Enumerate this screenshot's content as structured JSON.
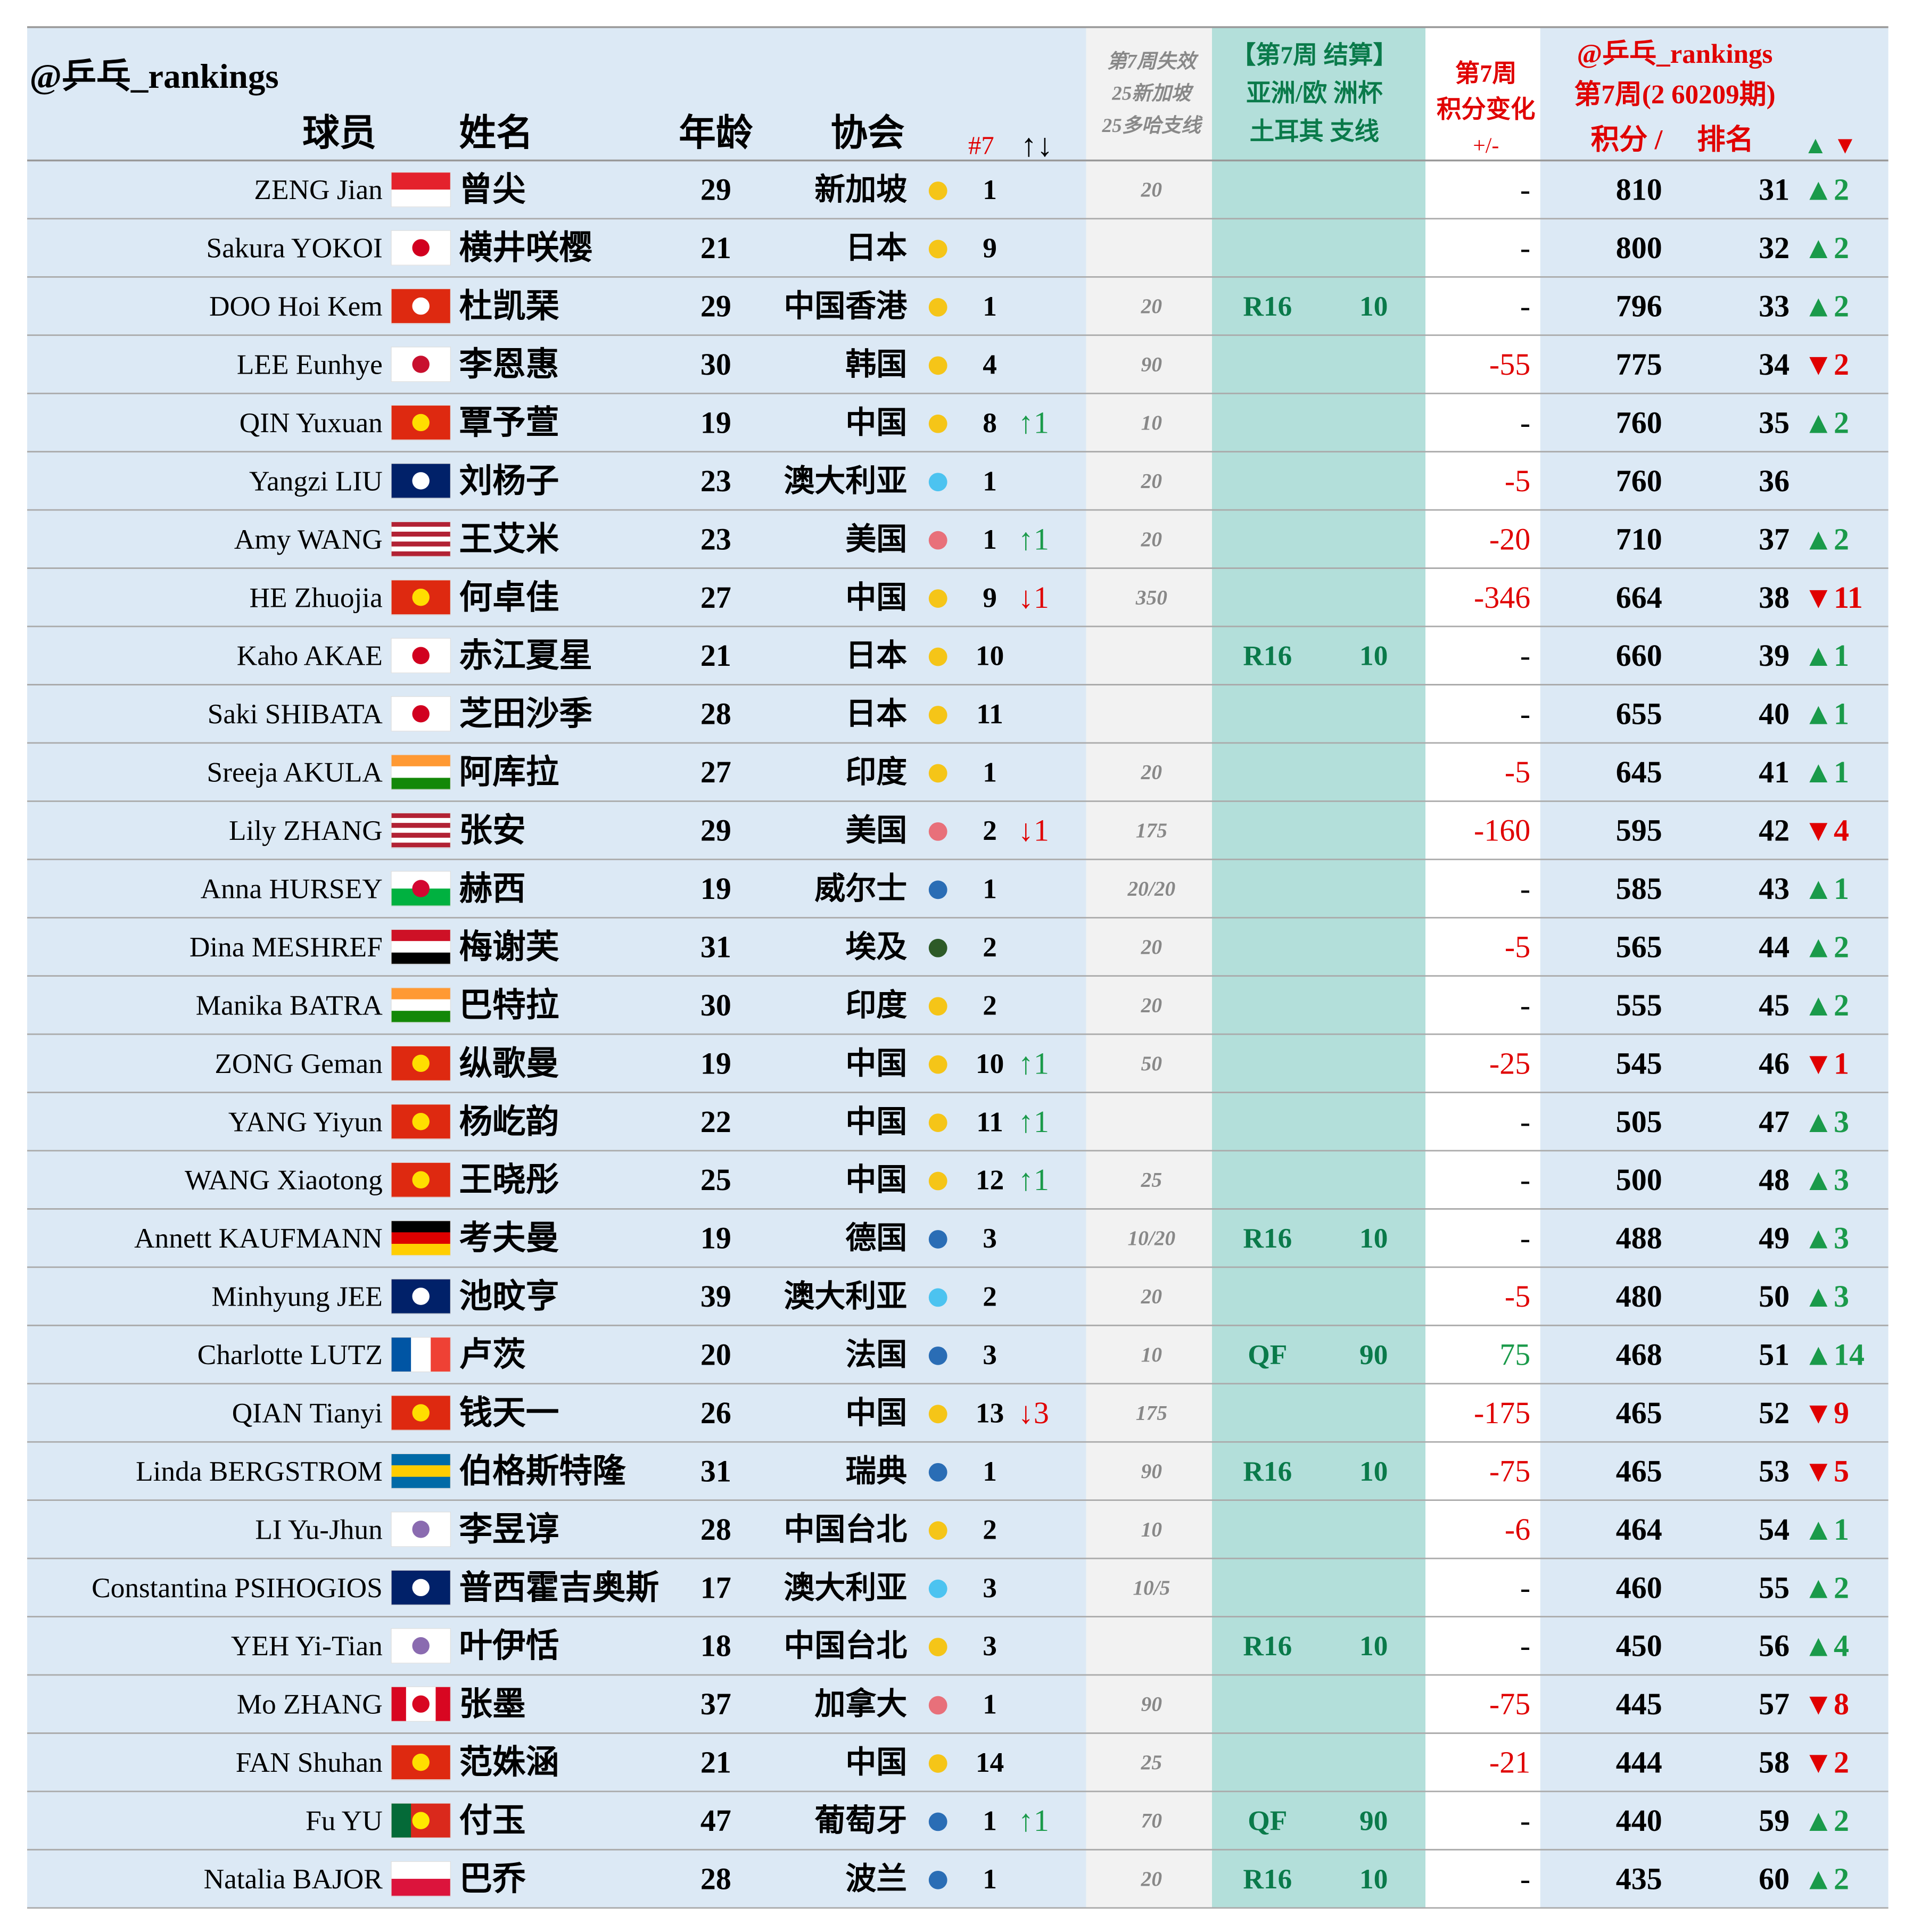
{
  "header": {
    "handle": "@乒乓_rankings",
    "player": "球员",
    "cn_name": "姓名",
    "age": "年龄",
    "assoc": "协会",
    "week": "#7",
    "moves": "↑↓",
    "lost_title": [
      "第7周失效",
      "25新加坡",
      "25多哈支线"
    ],
    "cup_title": [
      "【第7周 结算】",
      "亚洲/欧 洲杯",
      "土耳其 支线"
    ],
    "change_title": [
      "第7周",
      "积分变化",
      "+/-"
    ],
    "rank_title": [
      "@乒乓_rankings",
      "第7周(2 60209期)"
    ],
    "points_label": "积分 /",
    "rank_label": "排名",
    "delta_up": "▲",
    "delta_down": "▼"
  },
  "rows": [
    {
      "name": "ZENG Jian",
      "cn": "曾尖",
      "age": 29,
      "assoc": "新加坡",
      "dot": "#f5c518",
      "wk": 1,
      "lost": 20,
      "change": "-",
      "points": 810,
      "rank": 31,
      "delta": "▲2",
      "delta_color": "#1a9a4a",
      "flag": {
        "dir": "h",
        "stripes": [
          "#e4222c",
          "#ffffff"
        ]
      }
    },
    {
      "name": "Sakura YOKOI",
      "cn": "横井咲樱",
      "age": 21,
      "assoc": "日本",
      "dot": "#f5c518",
      "wk": 9,
      "change": "-",
      "points": 800,
      "rank": 32,
      "delta": "▲2",
      "delta_color": "#1a9a4a",
      "flag": {
        "dir": "h",
        "stripes": [
          "#ffffff"
        ],
        "circle": "#d1001f"
      }
    },
    {
      "name": "DOO Hoi Kem",
      "cn": "杜凯琹",
      "age": 29,
      "assoc": "中国香港",
      "dot": "#f5c518",
      "wk": 1,
      "lost": 20,
      "cup_round": "R16",
      "cup_pts": 10,
      "change": "-",
      "points": 796,
      "rank": 33,
      "delta": "▲2",
      "delta_color": "#1a9a4a",
      "flag": {
        "dir": "h",
        "stripes": [
          "#de2910"
        ],
        "circle": "#ffffff"
      }
    },
    {
      "name": "LEE Eunhye",
      "cn": "李恩惠",
      "age": 30,
      "assoc": "韩国",
      "dot": "#f5c518",
      "wk": 4,
      "lost": 90,
      "change": -55,
      "points": 775,
      "rank": 34,
      "delta": "▼2",
      "delta_color": "#e00000",
      "flag": {
        "dir": "h",
        "stripes": [
          "#ffffff"
        ],
        "circle": "#c8102e"
      }
    },
    {
      "name": "QIN Yuxuan",
      "cn": "覃予萱",
      "age": 19,
      "assoc": "中国",
      "dot": "#f5c518",
      "wk": 8,
      "wk_move": "↑1",
      "wk_move_color": "#1a9a4a",
      "lost": 10,
      "change": "-",
      "points": 760,
      "rank": 35,
      "delta": "▲2",
      "delta_color": "#1a9a4a",
      "flag": {
        "dir": "h",
        "stripes": [
          "#de2910"
        ],
        "circle": "#ffde00"
      }
    },
    {
      "name": "Yangzi LIU",
      "cn": "刘杨子",
      "age": 23,
      "assoc": "澳大利亚",
      "dot": "#4cc3f0",
      "wk": 1,
      "lost": 20,
      "change": -5,
      "points": 760,
      "rank": 36,
      "flag": {
        "dir": "h",
        "stripes": [
          "#012169"
        ],
        "circle": "#ffffff"
      }
    },
    {
      "name": "Amy WANG",
      "cn": "王艾米",
      "age": 23,
      "assoc": "美国",
      "dot": "#e8707a",
      "wk": 1,
      "wk_move": "↑1",
      "wk_move_color": "#1a9a4a",
      "lost": 20,
      "change": -20,
      "points": 710,
      "rank": 37,
      "delta": "▲2",
      "delta_color": "#1a9a4a",
      "flag": {
        "dir": "h",
        "stripes": [
          "#b22234",
          "#ffffff",
          "#b22234",
          "#ffffff",
          "#b22234",
          "#ffffff",
          "#b22234"
        ]
      }
    },
    {
      "name": "HE Zhuojia",
      "cn": "何卓佳",
      "age": 27,
      "assoc": "中国",
      "dot": "#f5c518",
      "wk": 9,
      "wk_move": "↓1",
      "wk_move_color": "#e00000",
      "lost": 350,
      "change": -346,
      "points": 664,
      "rank": 38,
      "delta": "▼11",
      "delta_color": "#e00000",
      "flag": {
        "dir": "h",
        "stripes": [
          "#de2910"
        ],
        "circle": "#ffde00"
      }
    },
    {
      "name": "Kaho AKAE",
      "cn": "赤江夏星",
      "age": 21,
      "assoc": "日本",
      "dot": "#f5c518",
      "wk": 10,
      "cup_round": "R16",
      "cup_pts": 10,
      "change": "-",
      "points": 660,
      "rank": 39,
      "delta": "▲1",
      "delta_color": "#1a9a4a",
      "flag": {
        "dir": "h",
        "stripes": [
          "#ffffff"
        ],
        "circle": "#d1001f"
      }
    },
    {
      "name": "Saki SHIBATA",
      "cn": "芝田沙季",
      "age": 28,
      "assoc": "日本",
      "dot": "#f5c518",
      "wk": 11,
      "change": "-",
      "points": 655,
      "rank": 40,
      "delta": "▲1",
      "delta_color": "#1a9a4a",
      "flag": {
        "dir": "h",
        "stripes": [
          "#ffffff"
        ],
        "circle": "#d1001f"
      }
    },
    {
      "name": "Sreeja AKULA",
      "cn": "阿库拉",
      "age": 27,
      "assoc": "印度",
      "dot": "#f5c518",
      "wk": 1,
      "lost": 20,
      "change": -5,
      "points": 645,
      "rank": 41,
      "delta": "▲1",
      "delta_color": "#1a9a4a",
      "flag": {
        "dir": "h",
        "stripes": [
          "#ff9933",
          "#ffffff",
          "#138808"
        ]
      }
    },
    {
      "name": "Lily ZHANG",
      "cn": "张安",
      "age": 29,
      "assoc": "美国",
      "dot": "#e8707a",
      "wk": 2,
      "wk_move": "↓1",
      "wk_move_color": "#e00000",
      "lost": 175,
      "change": -160,
      "points": 595,
      "rank": 42,
      "delta": "▼4",
      "delta_color": "#e00000",
      "flag": {
        "dir": "h",
        "stripes": [
          "#b22234",
          "#ffffff",
          "#b22234",
          "#ffffff",
          "#b22234",
          "#ffffff",
          "#b22234"
        ]
      }
    },
    {
      "name": "Anna HURSEY",
      "cn": "赫西",
      "age": 19,
      "assoc": "威尔士",
      "dot": "#2a6db5",
      "wk": 1,
      "lost": "20/20",
      "change": "-",
      "points": 585,
      "rank": 43,
      "delta": "▲1",
      "delta_color": "#1a9a4a",
      "flag": {
        "dir": "h",
        "stripes": [
          "#ffffff",
          "#00b140"
        ],
        "circle": "#d30731"
      }
    },
    {
      "name": "Dina MESHREF",
      "cn": "梅谢芙",
      "age": 31,
      "assoc": "埃及",
      "dot": "#2d5a27",
      "wk": 2,
      "lost": 20,
      "change": -5,
      "points": 565,
      "rank": 44,
      "delta": "▲2",
      "delta_color": "#1a9a4a",
      "flag": {
        "dir": "h",
        "stripes": [
          "#ce1126",
          "#ffffff",
          "#000000"
        ]
      }
    },
    {
      "name": "Manika BATRA",
      "cn": "巴特拉",
      "age": 30,
      "assoc": "印度",
      "dot": "#f5c518",
      "wk": 2,
      "lost": 20,
      "change": "-",
      "points": 555,
      "rank": 45,
      "delta": "▲2",
      "delta_color": "#1a9a4a",
      "flag": {
        "dir": "h",
        "stripes": [
          "#ff9933",
          "#ffffff",
          "#138808"
        ]
      }
    },
    {
      "name": "ZONG Geman",
      "cn": "纵歌曼",
      "age": 19,
      "assoc": "中国",
      "dot": "#f5c518",
      "wk": 10,
      "wk_move": "↑1",
      "wk_move_color": "#1a9a4a",
      "lost": 50,
      "change": -25,
      "points": 545,
      "rank": 46,
      "delta": "▼1",
      "delta_color": "#e00000",
      "flag": {
        "dir": "h",
        "stripes": [
          "#de2910"
        ],
        "circle": "#ffde00"
      }
    },
    {
      "name": "YANG Yiyun",
      "cn": "杨屹韵",
      "age": 22,
      "assoc": "中国",
      "dot": "#f5c518",
      "wk": 11,
      "wk_move": "↑1",
      "wk_move_color": "#1a9a4a",
      "change": "-",
      "points": 505,
      "rank": 47,
      "delta": "▲3",
      "delta_color": "#1a9a4a",
      "flag": {
        "dir": "h",
        "stripes": [
          "#de2910"
        ],
        "circle": "#ffde00"
      }
    },
    {
      "name": "WANG Xiaotong",
      "cn": "王晓彤",
      "age": 25,
      "assoc": "中国",
      "dot": "#f5c518",
      "wk": 12,
      "wk_move": "↑1",
      "wk_move_color": "#1a9a4a",
      "lost": 25,
      "change": "-",
      "points": 500,
      "rank": 48,
      "delta": "▲3",
      "delta_color": "#1a9a4a",
      "flag": {
        "dir": "h",
        "stripes": [
          "#de2910"
        ],
        "circle": "#ffde00"
      }
    },
    {
      "name": "Annett KAUFMANN",
      "cn": "考夫曼",
      "age": 19,
      "assoc": "德国",
      "dot": "#2a6db5",
      "wk": 3,
      "lost": "10/20",
      "cup_round": "R16",
      "cup_pts": 10,
      "change": "-",
      "points": 488,
      "rank": 49,
      "delta": "▲3",
      "delta_color": "#1a9a4a",
      "flag": {
        "dir": "h",
        "stripes": [
          "#000000",
          "#dd0000",
          "#ffce00"
        ]
      }
    },
    {
      "name": "Minhyung JEE",
      "cn": "池旼亨",
      "age": 39,
      "assoc": "澳大利亚",
      "dot": "#4cc3f0",
      "wk": 2,
      "lost": 20,
      "change": -5,
      "points": 480,
      "rank": 50,
      "delta": "▲3",
      "delta_color": "#1a9a4a",
      "flag": {
        "dir": "h",
        "stripes": [
          "#012169"
        ],
        "circle": "#ffffff"
      }
    },
    {
      "name": "Charlotte LUTZ",
      "cn": "卢茨",
      "age": 20,
      "assoc": "法国",
      "dot": "#2a6db5",
      "wk": 3,
      "lost": 10,
      "cup_round": "QF",
      "cup_pts": 90,
      "change": 75,
      "points": 468,
      "rank": 51,
      "delta": "▲14",
      "delta_color": "#1a9a4a",
      "flag": {
        "dir": "v",
        "stripes": [
          "#0055a4",
          "#ffffff",
          "#ef4135"
        ]
      }
    },
    {
      "name": "QIAN Tianyi",
      "cn": "钱天一",
      "age": 26,
      "assoc": "中国",
      "dot": "#f5c518",
      "wk": 13,
      "wk_move": "↓3",
      "wk_move_color": "#e00000",
      "lost": 175,
      "change": -175,
      "points": 465,
      "rank": 52,
      "delta": "▼9",
      "delta_color": "#e00000",
      "flag": {
        "dir": "h",
        "stripes": [
          "#de2910"
        ],
        "circle": "#ffde00"
      }
    },
    {
      "name": "Linda BERGSTROM",
      "cn": "伯格斯特隆",
      "age": 31,
      "assoc": "瑞典",
      "dot": "#2a6db5",
      "wk": 1,
      "lost": 90,
      "cup_round": "R16",
      "cup_pts": 10,
      "change": -75,
      "points": 465,
      "rank": 53,
      "delta": "▼5",
      "delta_color": "#e00000",
      "flag": {
        "dir": "h",
        "stripes": [
          "#006aa7",
          "#fecc00",
          "#006aa7"
        ]
      }
    },
    {
      "name": "LI Yu-Jhun",
      "cn": "李昱谆",
      "age": 28,
      "assoc": "中国台北",
      "dot": "#f5c518",
      "wk": 2,
      "lost": 10,
      "change": -6,
      "points": 464,
      "rank": 54,
      "delta": "▲1",
      "delta_color": "#1a9a4a",
      "flag": {
        "dir": "h",
        "stripes": [
          "#ffffff"
        ],
        "circle": "#8a6bb0"
      }
    },
    {
      "name": "Constantina PSIHOGIOS",
      "cn": "普西霍吉奥斯",
      "age": 17,
      "assoc": "澳大利亚",
      "dot": "#4cc3f0",
      "wk": 3,
      "lost": "10/5",
      "change": "-",
      "points": 460,
      "rank": 55,
      "delta": "▲2",
      "delta_color": "#1a9a4a",
      "flag": {
        "dir": "h",
        "stripes": [
          "#012169"
        ],
        "circle": "#ffffff"
      }
    },
    {
      "name": "YEH Yi-Tian",
      "cn": "叶伊恬",
      "age": 18,
      "assoc": "中国台北",
      "dot": "#f5c518",
      "wk": 3,
      "cup_round": "R16",
      "cup_pts": 10,
      "change": "-",
      "points": 450,
      "rank": 56,
      "delta": "▲4",
      "delta_color": "#1a9a4a",
      "flag": {
        "dir": "h",
        "stripes": [
          "#ffffff"
        ],
        "circle": "#8a6bb0"
      }
    },
    {
      "name": "Mo ZHANG",
      "cn": "张墨",
      "age": 37,
      "assoc": "加拿大",
      "dot": "#e8707a",
      "wk": 1,
      "lost": 90,
      "change": -75,
      "points": 445,
      "rank": 57,
      "delta": "▼8",
      "delta_color": "#e00000",
      "flag": {
        "dir": "v",
        "stripes": [
          "#d80621",
          "#ffffff",
          "#ffffff",
          "#d80621"
        ],
        "circle": "#d80621"
      }
    },
    {
      "name": "FAN Shuhan",
      "cn": "范姝涵",
      "age": 21,
      "assoc": "中国",
      "dot": "#f5c518",
      "wk": 14,
      "lost": 25,
      "change": -21,
      "points": 444,
      "rank": 58,
      "delta": "▼2",
      "delta_color": "#e00000",
      "flag": {
        "dir": "h",
        "stripes": [
          "#de2910"
        ],
        "circle": "#ffde00"
      }
    },
    {
      "name": "Fu YU",
      "cn": "付玉",
      "age": 47,
      "assoc": "葡萄牙",
      "dot": "#2a6db5",
      "wk": 1,
      "wk_move": "↑1",
      "wk_move_color": "#1a9a4a",
      "lost": 70,
      "cup_round": "QF",
      "cup_pts": 90,
      "change": "-",
      "points": 440,
      "rank": 59,
      "delta": "▲2",
      "delta_color": "#1a9a4a",
      "flag": {
        "dir": "v",
        "stripes": [
          "#046a38",
          "#da291c",
          "#da291c"
        ],
        "circle": "#ffe900"
      }
    },
    {
      "name": "Natalia BAJOR",
      "cn": "巴乔",
      "age": 28,
      "assoc": "波兰",
      "dot": "#2a6db5",
      "wk": 1,
      "lost": 20,
      "cup_round": "R16",
      "cup_pts": 10,
      "change": "-",
      "points": 435,
      "rank": 60,
      "delta": "▲2",
      "delta_color": "#1a9a4a",
      "flag": {
        "dir": "h",
        "stripes": [
          "#ffffff",
          "#dc143c"
        ]
      }
    }
  ]
}
